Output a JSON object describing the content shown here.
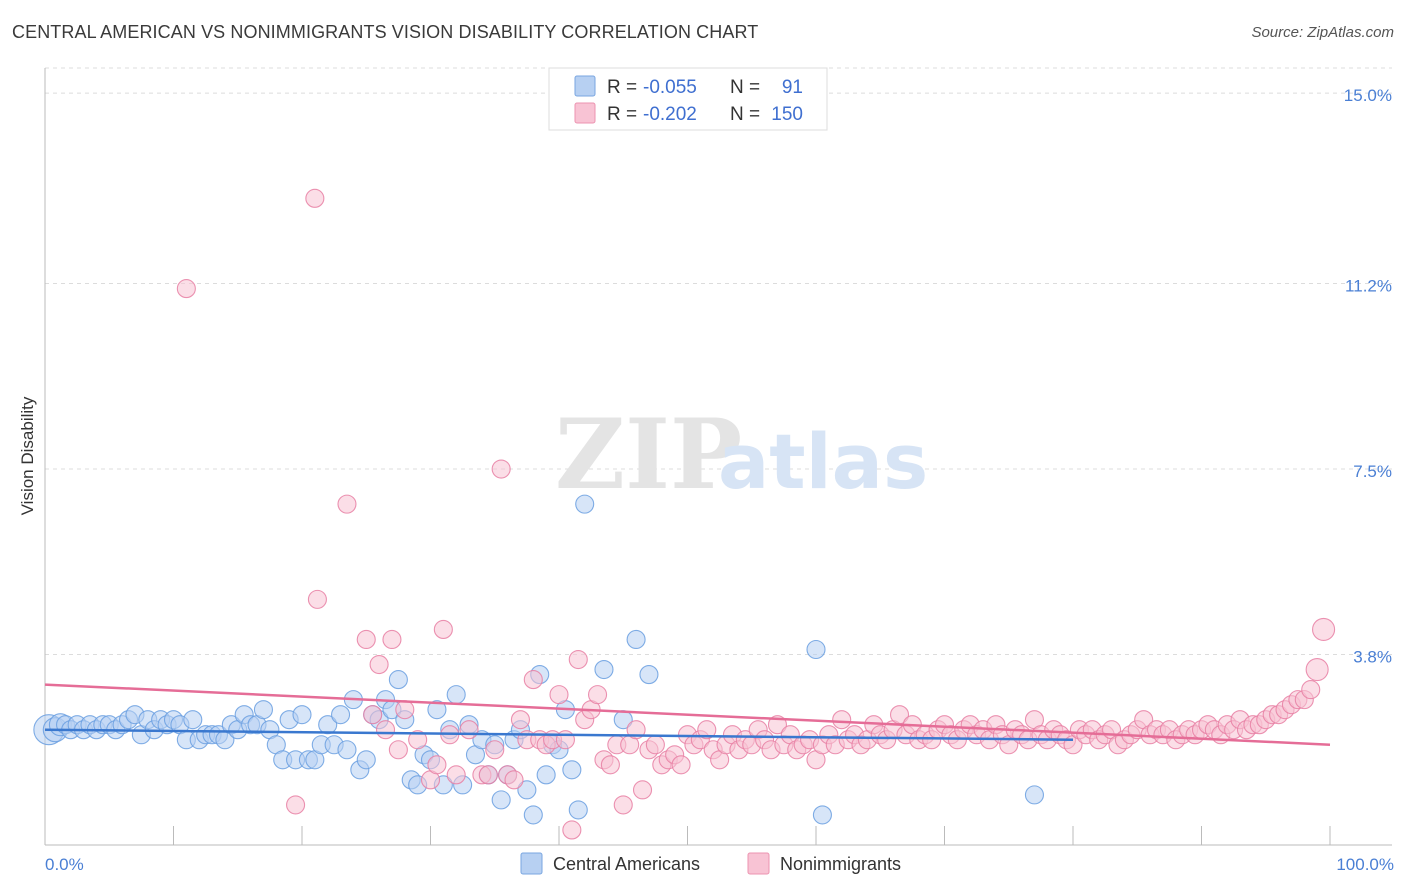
{
  "title": "CENTRAL AMERICAN VS NONIMMIGRANTS VISION DISABILITY CORRELATION CHART",
  "source": "Source: ZipAtlas.com",
  "watermark": {
    "part1": "ZIP",
    "part2": "atlas"
  },
  "legend_top": [
    {
      "r_label": "R = ",
      "r_value": "-0.055",
      "n_label": "N = ",
      "n_value": "91",
      "color": "#a9c8f0"
    },
    {
      "r_label": "R = ",
      "r_value": "-0.202",
      "n_label": "N = ",
      "n_value": "150",
      "color": "#f7b8cc"
    }
  ],
  "chart_data": {
    "type": "scatter",
    "title": "CENTRAL AMERICAN VS NONIMMIGRANTS VISION DISABILITY CORRELATION CHART",
    "xlabel": "",
    "ylabel": "Vision Disability",
    "xlim": [
      0,
      100
    ],
    "ylim": [
      0,
      15.5
    ],
    "x_tick_labels": [
      "0.0%",
      "100.0%"
    ],
    "y_ticks": [
      3.8,
      7.5,
      11.2,
      15.0
    ],
    "y_tick_labels": [
      "3.8%",
      "7.5%",
      "11.2%",
      "15.0%"
    ],
    "grid": true,
    "legend_position": "top-center",
    "series": [
      {
        "name": "Central Americans",
        "color": "#6a9fe0",
        "fill": "#b7d0f2",
        "r": -0.055,
        "n": 91,
        "trend": {
          "x": [
            0,
            80
          ],
          "y": [
            2.3,
            2.1
          ]
        },
        "points": [
          [
            0.3,
            2.3
          ],
          [
            0.8,
            2.3
          ],
          [
            1.2,
            2.4
          ],
          [
            1.6,
            2.4
          ],
          [
            2.0,
            2.3
          ],
          [
            2.5,
            2.4
          ],
          [
            3.0,
            2.3
          ],
          [
            3.5,
            2.4
          ],
          [
            4.0,
            2.3
          ],
          [
            4.5,
            2.4
          ],
          [
            5.0,
            2.4
          ],
          [
            5.5,
            2.3
          ],
          [
            6.0,
            2.4
          ],
          [
            6.5,
            2.5
          ],
          [
            7.0,
            2.6
          ],
          [
            7.5,
            2.2
          ],
          [
            8.0,
            2.5
          ],
          [
            8.5,
            2.3
          ],
          [
            9.0,
            2.5
          ],
          [
            9.5,
            2.4
          ],
          [
            10.0,
            2.5
          ],
          [
            10.5,
            2.4
          ],
          [
            11.0,
            2.1
          ],
          [
            11.5,
            2.5
          ],
          [
            12.0,
            2.1
          ],
          [
            12.5,
            2.2
          ],
          [
            13.0,
            2.2
          ],
          [
            13.5,
            2.2
          ],
          [
            14.0,
            2.1
          ],
          [
            14.5,
            2.4
          ],
          [
            15.0,
            2.3
          ],
          [
            15.5,
            2.6
          ],
          [
            16.0,
            2.4
          ],
          [
            16.5,
            2.4
          ],
          [
            17.0,
            2.7
          ],
          [
            17.5,
            2.3
          ],
          [
            18.0,
            2.0
          ],
          [
            18.5,
            1.7
          ],
          [
            19.0,
            2.5
          ],
          [
            19.5,
            1.7
          ],
          [
            20.0,
            2.6
          ],
          [
            20.5,
            1.7
          ],
          [
            21.0,
            1.7
          ],
          [
            21.5,
            2.0
          ],
          [
            22.0,
            2.4
          ],
          [
            22.5,
            2.0
          ],
          [
            23.0,
            2.6
          ],
          [
            23.5,
            1.9
          ],
          [
            24.0,
            2.9
          ],
          [
            24.5,
            1.5
          ],
          [
            25.0,
            1.7
          ],
          [
            25.5,
            2.6
          ],
          [
            26.0,
            2.5
          ],
          [
            26.5,
            2.9
          ],
          [
            27.0,
            2.7
          ],
          [
            27.5,
            3.3
          ],
          [
            28.0,
            2.5
          ],
          [
            28.5,
            1.3
          ],
          [
            29.0,
            1.2
          ],
          [
            29.5,
            1.8
          ],
          [
            30.0,
            1.7
          ],
          [
            30.5,
            2.7
          ],
          [
            31.0,
            1.2
          ],
          [
            31.5,
            2.3
          ],
          [
            32.0,
            3.0
          ],
          [
            32.5,
            1.2
          ],
          [
            33.0,
            2.4
          ],
          [
            33.5,
            1.8
          ],
          [
            34.0,
            2.1
          ],
          [
            34.5,
            1.4
          ],
          [
            35.0,
            2.0
          ],
          [
            35.5,
            0.9
          ],
          [
            36.0,
            1.4
          ],
          [
            36.5,
            2.1
          ],
          [
            37.0,
            2.3
          ],
          [
            37.5,
            1.1
          ],
          [
            38.0,
            0.6
          ],
          [
            38.5,
            3.4
          ],
          [
            39.0,
            1.4
          ],
          [
            39.5,
            2.0
          ],
          [
            40.0,
            1.9
          ],
          [
            40.5,
            2.7
          ],
          [
            41.0,
            1.5
          ],
          [
            41.5,
            0.7
          ],
          [
            42.0,
            6.8
          ],
          [
            43.5,
            3.5
          ],
          [
            45.0,
            2.5
          ],
          [
            46.0,
            4.1
          ],
          [
            47.0,
            3.4
          ],
          [
            60.0,
            3.9
          ],
          [
            60.5,
            0.6
          ],
          [
            77.0,
            1.0
          ]
        ]
      },
      {
        "name": "Nonimmigrants",
        "color": "#e87fa3",
        "fill": "#f8c3d4",
        "r": -0.202,
        "n": 150,
        "trend": {
          "x": [
            0,
            100
          ],
          "y": [
            3.2,
            2.0
          ]
        },
        "points": [
          [
            11.0,
            11.1
          ],
          [
            21.0,
            12.9
          ],
          [
            21.2,
            4.9
          ],
          [
            19.5,
            0.8
          ],
          [
            23.5,
            6.8
          ],
          [
            25.0,
            4.1
          ],
          [
            25.5,
            2.6
          ],
          [
            26.0,
            3.6
          ],
          [
            26.5,
            2.3
          ],
          [
            27.0,
            4.1
          ],
          [
            27.5,
            1.9
          ],
          [
            28.0,
            2.7
          ],
          [
            29.0,
            2.1
          ],
          [
            30.0,
            1.3
          ],
          [
            30.5,
            1.6
          ],
          [
            31.0,
            4.3
          ],
          [
            31.5,
            2.2
          ],
          [
            32.0,
            1.4
          ],
          [
            33.0,
            2.3
          ],
          [
            34.0,
            1.4
          ],
          [
            34.5,
            1.4
          ],
          [
            35.0,
            1.9
          ],
          [
            35.5,
            7.5
          ],
          [
            36.0,
            1.4
          ],
          [
            36.5,
            1.3
          ],
          [
            37.0,
            2.5
          ],
          [
            37.5,
            2.1
          ],
          [
            38.0,
            3.3
          ],
          [
            38.5,
            2.1
          ],
          [
            39.0,
            2.0
          ],
          [
            39.5,
            2.1
          ],
          [
            40.0,
            3.0
          ],
          [
            40.5,
            2.1
          ],
          [
            41.0,
            0.3
          ],
          [
            41.5,
            3.7
          ],
          [
            42.0,
            2.5
          ],
          [
            42.5,
            2.7
          ],
          [
            43.0,
            3.0
          ],
          [
            43.5,
            1.7
          ],
          [
            44.0,
            1.6
          ],
          [
            44.5,
            2.0
          ],
          [
            45.0,
            0.8
          ],
          [
            45.5,
            2.0
          ],
          [
            46.0,
            2.3
          ],
          [
            46.5,
            1.1
          ],
          [
            47.0,
            1.9
          ],
          [
            47.5,
            2.0
          ],
          [
            48.0,
            1.6
          ],
          [
            48.5,
            1.7
          ],
          [
            49.0,
            1.8
          ],
          [
            49.5,
            1.6
          ],
          [
            50.0,
            2.2
          ],
          [
            50.5,
            2.0
          ],
          [
            51.0,
            2.1
          ],
          [
            51.5,
            2.3
          ],
          [
            52.0,
            1.9
          ],
          [
            52.5,
            1.7
          ],
          [
            53.0,
            2.0
          ],
          [
            53.5,
            2.2
          ],
          [
            54.0,
            1.9
          ],
          [
            54.5,
            2.1
          ],
          [
            55.0,
            2.0
          ],
          [
            55.5,
            2.3
          ],
          [
            56.0,
            2.1
          ],
          [
            56.5,
            1.9
          ],
          [
            57.0,
            2.4
          ],
          [
            57.5,
            2.0
          ],
          [
            58.0,
            2.2
          ],
          [
            58.5,
            1.9
          ],
          [
            59.0,
            2.0
          ],
          [
            59.5,
            2.1
          ],
          [
            60.0,
            1.7
          ],
          [
            60.5,
            2.0
          ],
          [
            61.0,
            2.2
          ],
          [
            61.5,
            2.0
          ],
          [
            62.0,
            2.5
          ],
          [
            62.5,
            2.1
          ],
          [
            63.0,
            2.2
          ],
          [
            63.5,
            2.0
          ],
          [
            64.0,
            2.1
          ],
          [
            64.5,
            2.4
          ],
          [
            65.0,
            2.2
          ],
          [
            65.5,
            2.1
          ],
          [
            66.0,
            2.3
          ],
          [
            66.5,
            2.6
          ],
          [
            67.0,
            2.2
          ],
          [
            67.5,
            2.4
          ],
          [
            68.0,
            2.1
          ],
          [
            68.5,
            2.2
          ],
          [
            69.0,
            2.1
          ],
          [
            69.5,
            2.3
          ],
          [
            70.0,
            2.4
          ],
          [
            70.5,
            2.2
          ],
          [
            71.0,
            2.1
          ],
          [
            71.5,
            2.3
          ],
          [
            72.0,
            2.4
          ],
          [
            72.5,
            2.2
          ],
          [
            73.0,
            2.3
          ],
          [
            73.5,
            2.1
          ],
          [
            74.0,
            2.4
          ],
          [
            74.5,
            2.2
          ],
          [
            75.0,
            2.0
          ],
          [
            75.5,
            2.3
          ],
          [
            76.0,
            2.2
          ],
          [
            76.5,
            2.1
          ],
          [
            77.0,
            2.5
          ],
          [
            77.5,
            2.2
          ],
          [
            78.0,
            2.1
          ],
          [
            78.5,
            2.3
          ],
          [
            79.0,
            2.2
          ],
          [
            79.5,
            2.1
          ],
          [
            80.0,
            2.0
          ],
          [
            80.5,
            2.3
          ],
          [
            81.0,
            2.2
          ],
          [
            81.5,
            2.3
          ],
          [
            82.0,
            2.1
          ],
          [
            82.5,
            2.2
          ],
          [
            83.0,
            2.3
          ],
          [
            83.5,
            2.0
          ],
          [
            84.0,
            2.1
          ],
          [
            84.5,
            2.2
          ],
          [
            85.0,
            2.3
          ],
          [
            85.5,
            2.5
          ],
          [
            86.0,
            2.2
          ],
          [
            86.5,
            2.3
          ],
          [
            87.0,
            2.2
          ],
          [
            87.5,
            2.3
          ],
          [
            88.0,
            2.1
          ],
          [
            88.5,
            2.2
          ],
          [
            89.0,
            2.3
          ],
          [
            89.5,
            2.2
          ],
          [
            90.0,
            2.3
          ],
          [
            90.5,
            2.4
          ],
          [
            91.0,
            2.3
          ],
          [
            91.5,
            2.2
          ],
          [
            92.0,
            2.4
          ],
          [
            92.5,
            2.3
          ],
          [
            93.0,
            2.5
          ],
          [
            93.5,
            2.3
          ],
          [
            94.0,
            2.4
          ],
          [
            94.5,
            2.4
          ],
          [
            95.0,
            2.5
          ],
          [
            95.5,
            2.6
          ],
          [
            96.0,
            2.6
          ],
          [
            96.5,
            2.7
          ],
          [
            97.0,
            2.8
          ],
          [
            97.5,
            2.9
          ],
          [
            98.0,
            2.9
          ],
          [
            98.5,
            3.1
          ],
          [
            99.0,
            3.5
          ],
          [
            99.5,
            4.3
          ]
        ]
      }
    ]
  },
  "bottom_legend": [
    {
      "label": "Central Americans",
      "color": "#b7d0f2"
    },
    {
      "label": "Nonimmigrants",
      "color": "#f8c3d4"
    }
  ]
}
